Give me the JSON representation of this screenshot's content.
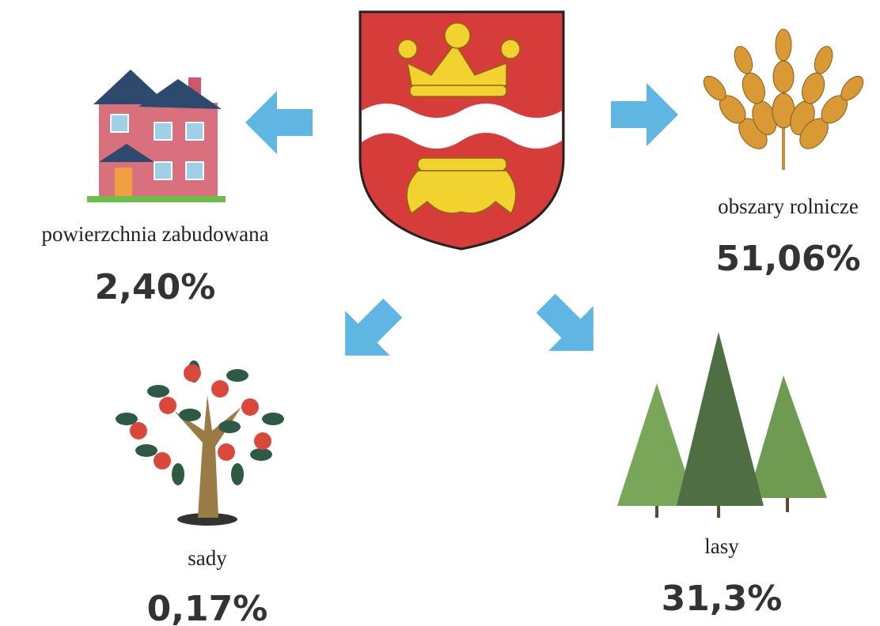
{
  "items": [
    {
      "label": "powierzchnia zabudowana",
      "value": "2,40%"
    },
    {
      "label": "obszary rolnicze",
      "value": "51,06%"
    },
    {
      "label": "sady",
      "value": "0,17%"
    },
    {
      "label": "lasy",
      "value": "31,3%"
    }
  ]
}
